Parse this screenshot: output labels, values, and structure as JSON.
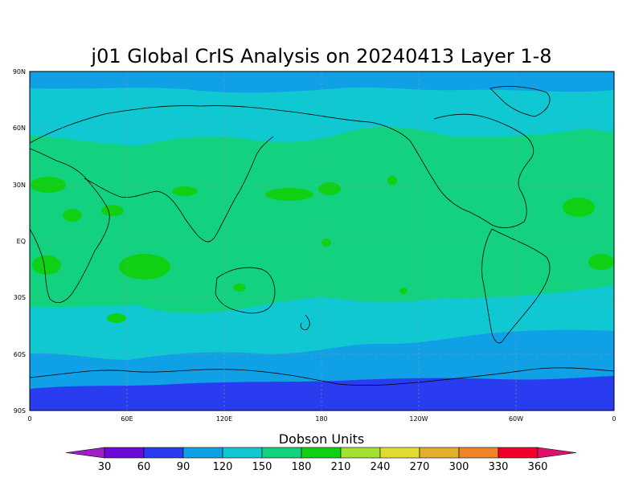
{
  "title": "j01 Global CrIS Analysis on 20240413 Layer 1-8",
  "lat_ticks": [
    "90N",
    "60N",
    "30N",
    "EQ",
    "30S",
    "60S",
    "90S"
  ],
  "lon_ticks": [
    "0",
    "60E",
    "120E",
    "180",
    "120W",
    "60W",
    "0"
  ],
  "colorbar": {
    "title": "Dobson Units",
    "labels": [
      "30",
      "60",
      "90",
      "120",
      "150",
      "180",
      "210",
      "240",
      "270",
      "300",
      "330",
      "360"
    ],
    "colors": [
      "#a020c8",
      "#6a0ad8",
      "#2a3cf0",
      "#10a0e6",
      "#10c8d2",
      "#12d280",
      "#10d014",
      "#a0e132",
      "#e1dc32",
      "#e1af2d",
      "#f08228",
      "#f0002a",
      "#e0106e"
    ]
  },
  "map_colors": {
    "band_90_120": "#10a0e6",
    "band_120_150": "#10c8d2",
    "band_150_180": "#12d280",
    "band_180_210": "#10d014",
    "band_60_90": "#2a3cf0"
  }
}
